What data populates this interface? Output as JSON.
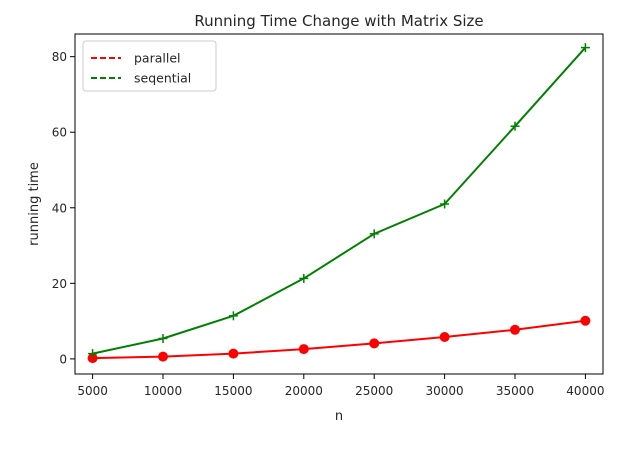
{
  "chart_data": {
    "type": "line",
    "title": "Running Time Change with Matrix Size",
    "xlabel": "n",
    "ylabel": "running time",
    "x": [
      5000,
      10000,
      15000,
      20000,
      25000,
      30000,
      35000,
      40000
    ],
    "xlim": [
      3750,
      41250
    ],
    "ylim": [
      -4,
      86
    ],
    "xticks": [
      5000,
      10000,
      15000,
      20000,
      25000,
      30000,
      35000,
      40000
    ],
    "yticks": [
      0,
      20,
      40,
      60,
      80
    ],
    "grid": false,
    "legend_position": "top-left",
    "series": [
      {
        "name": "parallel",
        "color": "#ff0000",
        "marker": "circle",
        "legend_style": "dashed",
        "values": [
          0.2,
          0.6,
          1.4,
          2.6,
          4.1,
          5.8,
          7.7,
          10.1
        ]
      },
      {
        "name": "seqential",
        "color": "#008000",
        "marker": "plus",
        "legend_style": "dashed",
        "values": [
          1.4,
          5.4,
          11.4,
          21.3,
          33.1,
          41.0,
          61.6,
          82.4
        ]
      }
    ]
  }
}
